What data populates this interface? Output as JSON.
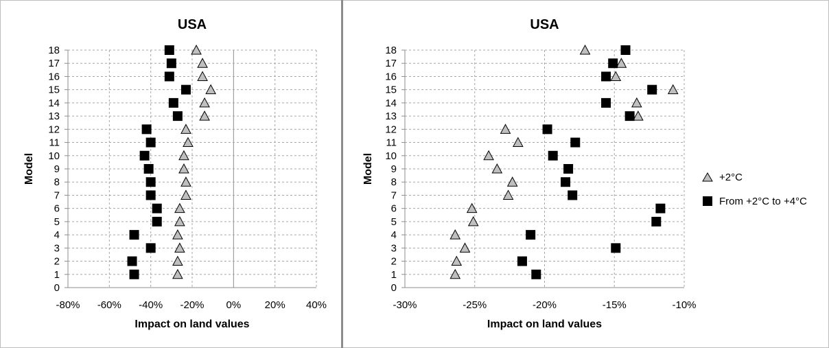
{
  "chart_data": [
    {
      "type": "scatter",
      "title": "USA",
      "xlabel": "Impact on land values",
      "ylabel": "Model",
      "xlim": [
        -80,
        40
      ],
      "x_unit": "%",
      "xticks": [
        "-80%",
        "-60%",
        "-40%",
        "-20%",
        "0%",
        "20%",
        "40%"
      ],
      "ylim": [
        0,
        18
      ],
      "yticks": [
        "0",
        "1",
        "2",
        "3",
        "4",
        "5",
        "6",
        "7",
        "8",
        "9",
        "10",
        "11",
        "12",
        "13",
        "14",
        "15",
        "16",
        "17",
        "18"
      ],
      "grid": true,
      "y": [
        1,
        2,
        3,
        4,
        5,
        6,
        7,
        8,
        9,
        10,
        11,
        12,
        13,
        14,
        15,
        16,
        17,
        18
      ],
      "series": [
        {
          "name": "+2°C",
          "marker": "triangle",
          "color": "#bfbfbf",
          "x": [
            -27,
            -27,
            -26,
            -27,
            -26,
            -26,
            -23,
            -23,
            -24,
            -24,
            -22,
            -23,
            -14,
            -14,
            -11,
            -15,
            -15,
            -18
          ]
        },
        {
          "name": "From +2°C to +4°C",
          "marker": "square",
          "color": "#000000",
          "x": [
            -48,
            -49,
            -40,
            -48,
            -37,
            -37,
            -40,
            -40,
            -41,
            -43,
            -40,
            -42,
            -27,
            -29,
            -23,
            -31,
            -30,
            -31
          ]
        }
      ]
    },
    {
      "type": "scatter",
      "title": "USA",
      "xlabel": "Impact on land values",
      "ylabel": "Model",
      "xlim": [
        -30,
        -10
      ],
      "x_unit": "%",
      "xticks": [
        "-30%",
        "-25%",
        "-20%",
        "-15%",
        "-10%"
      ],
      "ylim": [
        0,
        18
      ],
      "yticks": [
        "0",
        "1",
        "2",
        "3",
        "4",
        "5",
        "6",
        "7",
        "8",
        "9",
        "10",
        "11",
        "12",
        "13",
        "14",
        "15",
        "16",
        "17",
        "18"
      ],
      "grid": true,
      "legend": "right",
      "y": [
        1,
        2,
        3,
        4,
        5,
        6,
        7,
        8,
        9,
        10,
        11,
        12,
        13,
        14,
        15,
        16,
        17,
        18
      ],
      "series": [
        {
          "name": "+2°C",
          "marker": "triangle",
          "color": "#bfbfbf",
          "x": [
            -26.4,
            -26.3,
            -25.7,
            -26.4,
            -25.1,
            -25.2,
            -22.6,
            -22.3,
            -23.4,
            -24.0,
            -21.9,
            -22.8,
            -13.3,
            -13.4,
            -10.8,
            -14.9,
            -14.5,
            -17.1
          ]
        },
        {
          "name": "From +2°C to +4°C",
          "marker": "square",
          "color": "#000000",
          "x": [
            -20.6,
            -21.6,
            -14.9,
            -21.0,
            -12.0,
            -11.7,
            -18.0,
            -18.5,
            -18.3,
            -19.4,
            -17.8,
            -19.8,
            -13.9,
            -15.6,
            -12.3,
            -15.6,
            -15.1,
            -14.2
          ]
        }
      ]
    }
  ],
  "legend": {
    "items": [
      {
        "label": "+2°C",
        "marker": "triangle",
        "color": "#bfbfbf"
      },
      {
        "label": "From +2°C to +4°C",
        "marker": "square",
        "color": "#000000"
      }
    ]
  }
}
